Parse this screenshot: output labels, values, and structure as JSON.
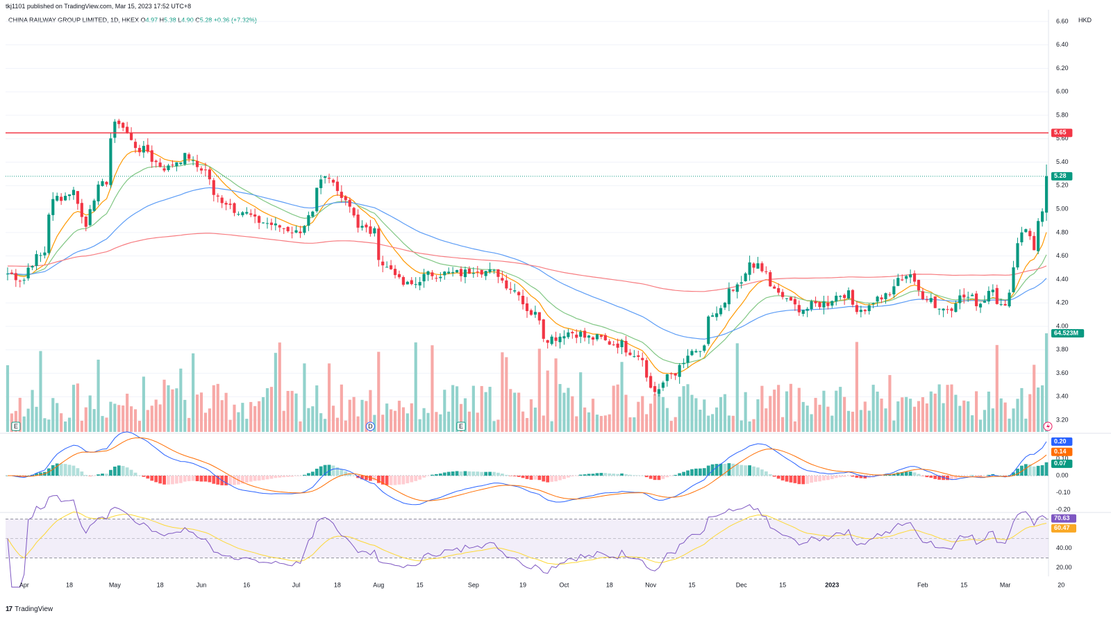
{
  "header": {
    "published": "tkj1101 published on TradingView.com, Mar 15, 2023 17:52 UTC+8",
    "symbol": "CHINA RAILWAY GROUP LIMITED, 1D, HKEX",
    "o_label": "O",
    "o": "4.97",
    "h_label": "H",
    "h": "5.38",
    "l_label": "L",
    "l": "4.90",
    "c_label": "C",
    "c": "5.28",
    "change": "+0.36 (+7.32%)",
    "currency": "HKD"
  },
  "brand": {
    "logo": "17",
    "name": "TradingView"
  },
  "price_axis": [
    "6.60",
    "6.40",
    "6.20",
    "6.00",
    "5.80",
    "5.60",
    "5.40",
    "5.20",
    "5.00",
    "4.80",
    "4.60",
    "4.40",
    "4.20",
    "4.00",
    "3.80",
    "3.60",
    "3.40",
    "3.20"
  ],
  "price_tags": [
    {
      "label": "5.65",
      "value": 5.65,
      "color": "#f23645"
    },
    {
      "label": "5.28",
      "value": 5.28,
      "color": "#089981"
    },
    {
      "label": "64.523M",
      "color": "#089981"
    }
  ],
  "macd_axis": [
    "0.20",
    "0.10",
    "0.00",
    "-0.10",
    "-0.20"
  ],
  "macd_tags": [
    {
      "label": "0.20",
      "color": "#2962ff"
    },
    {
      "label": "0.14",
      "color": "#ff6d00"
    },
    {
      "label": "0.07",
      "color": "#089981"
    }
  ],
  "rsi_axis": [
    "40.00",
    "20.00"
  ],
  "rsi_tags": [
    {
      "label": "70.63",
      "color": "#7e57c2"
    },
    {
      "label": "60.47",
      "color": "#fdd835"
    }
  ],
  "time_axis": [
    "Apr",
    "18",
    "May",
    "18",
    "Jun",
    "16",
    "Jul",
    "18",
    "Aug",
    "15",
    "Sep",
    "19",
    "Oct",
    "18",
    "Nov",
    "15",
    "Dec",
    "15",
    "2023",
    "Feb",
    "15",
    "Mar",
    "20"
  ],
  "event_markers": [
    "E",
    "D",
    "E"
  ],
  "colors": {
    "up": "#089981",
    "down": "#f23645",
    "vol_up": "#92d2cc",
    "vol_down": "#f7a9a7",
    "ema_fast": "#ff9800",
    "ema_mid": "#81c784",
    "ema_slow": "#5b9cf6",
    "ema_long": "#f77c80",
    "macd": "#2962ff",
    "signal": "#ff6d00",
    "rsi": "#7e57c2",
    "rsi_ma": "#fdd835"
  },
  "chart_data": {
    "type": "candlestick",
    "title": "CHINA RAILWAY GROUP LIMITED, 1D, HKEX",
    "ylabel": "HKD",
    "ylim": [
      3.1,
      6.7
    ],
    "horizontal_line": 5.65,
    "last_close": 5.28,
    "last_volume": "64.523M",
    "anchors": [
      [
        "2022-03-28",
        4.45
      ],
      [
        "2022-04-01",
        4.4
      ],
      [
        "2022-04-07",
        4.6
      ],
      [
        "2022-04-13",
        5.1
      ],
      [
        "2022-04-19",
        5.15
      ],
      [
        "2022-04-22",
        4.85
      ],
      [
        "2022-04-28",
        5.2
      ],
      [
        "2022-05-04",
        5.75
      ],
      [
        "2022-05-06",
        5.65
      ],
      [
        "2022-05-12",
        5.5
      ],
      [
        "2022-05-20",
        5.35
      ],
      [
        "2022-05-27",
        5.45
      ],
      [
        "2022-06-01",
        5.35
      ],
      [
        "2022-06-06",
        5.1
      ],
      [
        "2022-06-13",
        5.0
      ],
      [
        "2022-06-20",
        4.9
      ],
      [
        "2022-06-27",
        4.85
      ],
      [
        "2022-07-04",
        4.8
      ],
      [
        "2022-07-08",
        4.95
      ],
      [
        "2022-07-13",
        5.25
      ],
      [
        "2022-07-18",
        5.15
      ],
      [
        "2022-07-25",
        4.85
      ],
      [
        "2022-07-29",
        4.8
      ],
      [
        "2022-08-03",
        4.5
      ],
      [
        "2022-08-10",
        4.35
      ],
      [
        "2022-08-19",
        4.45
      ],
      [
        "2022-08-29",
        4.45
      ],
      [
        "2022-09-02",
        4.5
      ],
      [
        "2022-09-09",
        4.45
      ],
      [
        "2022-09-16",
        4.3
      ],
      [
        "2022-09-22",
        4.1
      ],
      [
        "2022-09-27",
        3.9
      ],
      [
        "2022-10-04",
        3.95
      ],
      [
        "2022-10-12",
        3.9
      ],
      [
        "2022-10-21",
        3.85
      ],
      [
        "2022-10-28",
        3.75
      ],
      [
        "2022-11-02",
        3.45
      ],
      [
        "2022-11-08",
        3.6
      ],
      [
        "2022-11-14",
        3.75
      ],
      [
        "2022-11-18",
        3.8
      ],
      [
        "2022-11-22",
        4.1
      ],
      [
        "2022-11-29",
        4.3
      ],
      [
        "2022-12-05",
        4.55
      ],
      [
        "2022-12-09",
        4.45
      ],
      [
        "2022-12-15",
        4.25
      ],
      [
        "2022-12-22",
        4.15
      ],
      [
        "2022-12-30",
        4.2
      ],
      [
        "2023-01-05",
        4.28
      ],
      [
        "2023-01-11",
        4.15
      ],
      [
        "2023-01-19",
        4.25
      ],
      [
        "2023-01-27",
        4.45
      ],
      [
        "2023-02-02",
        4.25
      ],
      [
        "2023-02-08",
        4.15
      ],
      [
        "2023-02-15",
        4.25
      ],
      [
        "2023-02-21",
        4.2
      ],
      [
        "2023-02-24",
        4.35
      ],
      [
        "2023-03-01",
        4.15
      ],
      [
        "2023-03-03",
        4.5
      ],
      [
        "2023-03-08",
        4.85
      ],
      [
        "2023-03-10",
        4.65
      ],
      [
        "2023-03-14",
        4.97
      ],
      [
        "2023-03-15",
        5.28
      ]
    ],
    "ohlc_last": {
      "open": 4.97,
      "high": 5.38,
      "low": 4.9,
      "close": 5.28
    },
    "moving_averages": {
      "fast": 10,
      "mid": 20,
      "slow": 50,
      "long": 200
    },
    "macd": {
      "ylim": [
        -0.25,
        0.28
      ],
      "last_macd": 0.2,
      "last_signal": 0.14,
      "last_hist": 0.07
    },
    "rsi": {
      "ylim": [
        15,
        80
      ],
      "last_rsi": 70.63,
      "last_ma": 60.47,
      "bands": [
        70,
        30
      ]
    }
  }
}
